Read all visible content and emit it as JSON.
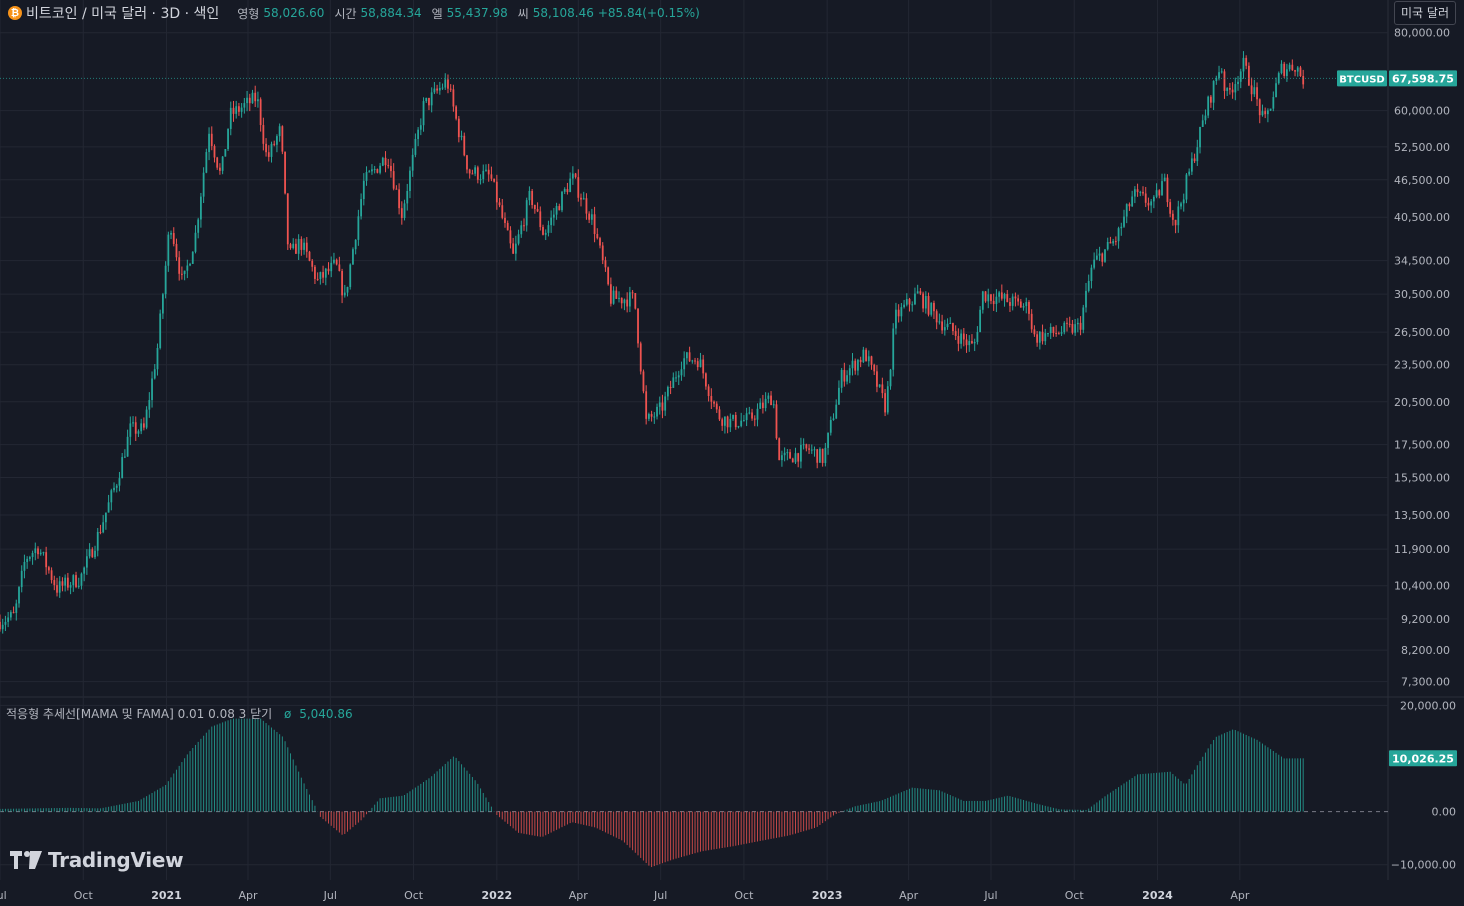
{
  "header": {
    "symbol": "비트코인 / 미국 달러 · 3D · 색인",
    "open_label": "영형",
    "open_value": "58,026.60",
    "high_label": "시간",
    "high_value": "58,884.34",
    "low_label": "엘",
    "low_value": "55,437.98",
    "close_label": "씨",
    "close_value": "58,108.46",
    "change": "+85.84(+0.15%)",
    "currency_button": "미국 달러",
    "coin_glyph": "₿"
  },
  "indicator": {
    "title": "적응형 추세선[MAMA 및 FAMA] 0.01 0.08 3 닫기",
    "symbol": "ø",
    "value": "5,040.86"
  },
  "watermark": {
    "text": "TradingView"
  },
  "colors": {
    "background": "#161a25",
    "grid": "#232733",
    "up": "#26a69a",
    "down": "#ef5350",
    "text": "#b2b5be"
  },
  "chart_data": [
    {
      "type": "candlestick",
      "scale": "log",
      "ylim": [
        7000,
        82000
      ],
      "y_ticks": [
        "80,000.00",
        "60,000.00",
        "52,500.00",
        "46,500.00",
        "40,500.00",
        "34,500.00",
        "30,500.00",
        "26,500.00",
        "23,500.00",
        "20,500.00",
        "17,500.00",
        "15,500.00",
        "13,500.00",
        "11,900.00",
        "10,400.00",
        "9,200.00",
        "8,200.00",
        "7,300.00"
      ],
      "y_tick_values": [
        80000,
        60000,
        52500,
        46500,
        40500,
        34500,
        30500,
        26500,
        23500,
        20500,
        17500,
        15500,
        13500,
        11900,
        10400,
        9200,
        8200,
        7300
      ],
      "x_ticks": [
        "Jul",
        "Oct",
        "2021",
        "Apr",
        "Jul",
        "Oct",
        "2022",
        "Apr",
        "Jul",
        "Oct",
        "2023",
        "Apr",
        "Jul",
        "Oct",
        "2024",
        "Apr"
      ],
      "x_tick_dates": [
        "2020-07-01",
        "2020-10-01",
        "2021-01-01",
        "2021-04-01",
        "2021-07-01",
        "2021-10-01",
        "2022-01-01",
        "2022-04-01",
        "2022-07-01",
        "2022-10-01",
        "2023-01-01",
        "2023-04-01",
        "2023-07-01",
        "2023-10-01",
        "2024-01-01",
        "2024-04-01"
      ],
      "x_range": [
        "2020-07-01",
        "2024-07-10"
      ],
      "bar_interval_days": 3,
      "price_path": [
        [
          "2020-07-01",
          9100
        ],
        [
          "2020-07-20",
          9300
        ],
        [
          "2020-08-01",
          11500
        ],
        [
          "2020-08-15",
          12000
        ],
        [
          "2020-09-05",
          10300
        ],
        [
          "2020-10-01",
          10700
        ],
        [
          "2020-10-20",
          12500
        ],
        [
          "2020-11-10",
          15300
        ],
        [
          "2020-11-25",
          18500
        ],
        [
          "2020-12-10",
          18500
        ],
        [
          "2020-12-25",
          25000
        ],
        [
          "2021-01-08",
          40000
        ],
        [
          "2021-01-22",
          31500
        ],
        [
          "2021-02-05",
          38000
        ],
        [
          "2021-02-20",
          56000
        ],
        [
          "2021-03-05",
          47000
        ],
        [
          "2021-03-15",
          59000
        ],
        [
          "2021-04-14",
          63000
        ],
        [
          "2021-04-25",
          50000
        ],
        [
          "2021-05-10",
          56000
        ],
        [
          "2021-05-19",
          35000
        ],
        [
          "2021-06-01",
          37000
        ],
        [
          "2021-06-20",
          32000
        ],
        [
          "2021-07-10",
          34000
        ],
        [
          "2021-07-20",
          30000
        ],
        [
          "2021-08-10",
          46000
        ],
        [
          "2021-09-05",
          51000
        ],
        [
          "2021-09-21",
          41000
        ],
        [
          "2021-10-15",
          61000
        ],
        [
          "2021-11-10",
          67000
        ],
        [
          "2021-11-20",
          58000
        ],
        [
          "2021-12-04",
          48000
        ],
        [
          "2021-12-28",
          47000
        ],
        [
          "2022-01-22",
          35000
        ],
        [
          "2022-02-10",
          44000
        ],
        [
          "2022-02-25",
          38000
        ],
        [
          "2022-03-28",
          47000
        ],
        [
          "2022-04-20",
          40000
        ],
        [
          "2022-05-10",
          30000
        ],
        [
          "2022-06-05",
          30000
        ],
        [
          "2022-06-18",
          19000
        ],
        [
          "2022-07-05",
          20000
        ],
        [
          "2022-07-28",
          24000
        ],
        [
          "2022-08-15",
          24000
        ],
        [
          "2022-09-05",
          19500
        ],
        [
          "2022-09-20",
          19000
        ],
        [
          "2022-10-10",
          19200
        ],
        [
          "2022-11-05",
          21000
        ],
        [
          "2022-11-12",
          16500
        ],
        [
          "2022-12-15",
          17200
        ],
        [
          "2022-12-31",
          16600
        ],
        [
          "2023-01-20",
          22500
        ],
        [
          "2023-02-15",
          24500
        ],
        [
          "2023-03-10",
          20000
        ],
        [
          "2023-03-20",
          28000
        ],
        [
          "2023-04-14",
          30500
        ],
        [
          "2023-05-10",
          27500
        ],
        [
          "2023-06-15",
          25000
        ],
        [
          "2023-06-25",
          30500
        ],
        [
          "2023-07-15",
          30000
        ],
        [
          "2023-08-15",
          29000
        ],
        [
          "2023-08-20",
          26000
        ],
        [
          "2023-09-15",
          26500
        ],
        [
          "2023-10-10",
          27000
        ],
        [
          "2023-10-24",
          34000
        ],
        [
          "2023-11-20",
          37500
        ],
        [
          "2023-12-08",
          44000
        ],
        [
          "2023-12-31",
          42500
        ],
        [
          "2024-01-11",
          46500
        ],
        [
          "2024-01-23",
          39500
        ],
        [
          "2024-02-12",
          50000
        ],
        [
          "2024-02-28",
          61000
        ],
        [
          "2024-03-14",
          71500
        ],
        [
          "2024-03-20",
          63000
        ],
        [
          "2024-04-08",
          71000
        ],
        [
          "2024-04-20",
          64000
        ],
        [
          "2024-05-01",
          57000
        ],
        [
          "2024-05-20",
          70000
        ],
        [
          "2024-06-05",
          71000
        ],
        [
          "2024-06-12",
          67500
        ]
      ],
      "last_price": {
        "label": "BTCUSD",
        "value": "67,598.75",
        "price": 67598.75
      }
    },
    {
      "type": "histogram",
      "ylim": [
        -11000,
        21000
      ],
      "y_ticks": [
        "20,000.00",
        "0.00",
        "−10,000.00"
      ],
      "y_tick_values": [
        20000,
        0,
        -10000
      ],
      "value_path": [
        [
          "2020-07-01",
          500
        ],
        [
          "2020-09-15",
          700
        ],
        [
          "2020-10-20",
          600
        ],
        [
          "2020-12-01",
          2000
        ],
        [
          "2020-12-31",
          5000
        ],
        [
          "2021-01-25",
          11000
        ],
        [
          "2021-02-20",
          16000
        ],
        [
          "2021-03-15",
          17500
        ],
        [
          "2021-04-15",
          17500
        ],
        [
          "2021-05-10",
          14000
        ],
        [
          "2021-05-31",
          6000
        ],
        [
          "2021-06-20",
          -1000
        ],
        [
          "2021-07-15",
          -4500
        ],
        [
          "2021-08-05",
          -1500
        ],
        [
          "2021-08-25",
          2500
        ],
        [
          "2021-09-20",
          3000
        ],
        [
          "2021-10-20",
          6500
        ],
        [
          "2021-11-15",
          10500
        ],
        [
          "2021-12-10",
          5500
        ],
        [
          "2021-12-31",
          -500
        ],
        [
          "2022-01-25",
          -4000
        ],
        [
          "2022-02-20",
          -4800
        ],
        [
          "2022-03-25",
          -2000
        ],
        [
          "2022-04-20",
          -3000
        ],
        [
          "2022-05-20",
          -5500
        ],
        [
          "2022-06-20",
          -10500
        ],
        [
          "2022-07-15",
          -9000
        ],
        [
          "2022-08-15",
          -7500
        ],
        [
          "2022-09-20",
          -6500
        ],
        [
          "2022-10-20",
          -5500
        ],
        [
          "2022-11-20",
          -4500
        ],
        [
          "2022-12-20",
          -3000
        ],
        [
          "2023-01-10",
          -500
        ],
        [
          "2023-02-01",
          1000
        ],
        [
          "2023-03-01",
          2000
        ],
        [
          "2023-04-05",
          4500
        ],
        [
          "2023-05-05",
          4000
        ],
        [
          "2023-06-01",
          2000
        ],
        [
          "2023-06-25",
          2000
        ],
        [
          "2023-07-20",
          3000
        ],
        [
          "2023-08-20",
          1500
        ],
        [
          "2023-09-15",
          400
        ],
        [
          "2023-10-15",
          300
        ],
        [
          "2023-11-05",
          3000
        ],
        [
          "2023-12-10",
          7000
        ],
        [
          "2024-01-15",
          7500
        ],
        [
          "2024-02-01",
          5000
        ],
        [
          "2024-02-15",
          9000
        ],
        [
          "2024-03-05",
          14000
        ],
        [
          "2024-03-25",
          15500
        ],
        [
          "2024-04-20",
          13500
        ],
        [
          "2024-05-20",
          10000
        ],
        [
          "2024-06-12",
          10026
        ]
      ],
      "last_value": {
        "value": "10,026.25",
        "v": 10026.25
      }
    }
  ]
}
